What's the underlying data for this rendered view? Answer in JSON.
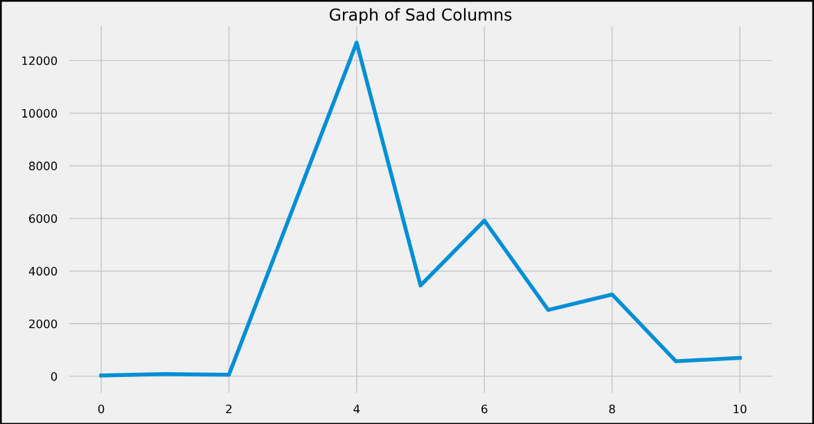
{
  "chart_data": {
    "type": "line",
    "title": "Graph of Sad Columns",
    "x": [
      0,
      1,
      2,
      3,
      4,
      5,
      6,
      7,
      8,
      9,
      10
    ],
    "series": [
      {
        "color": "#008fd5",
        "values": [
          30,
          85,
          60,
          6370,
          12680,
          3450,
          5915,
          2520,
          3110,
          570,
          700
        ]
      }
    ],
    "xlim": [
      -0.5,
      10.5
    ],
    "xticks": [
      0,
      2,
      4,
      6,
      8,
      10
    ],
    "ylim": [
      -630,
      13300
    ],
    "yticks": [
      0,
      2000,
      4000,
      6000,
      8000,
      10000,
      12000
    ],
    "grid": true,
    "marker": "none",
    "line_style": "solid"
  }
}
